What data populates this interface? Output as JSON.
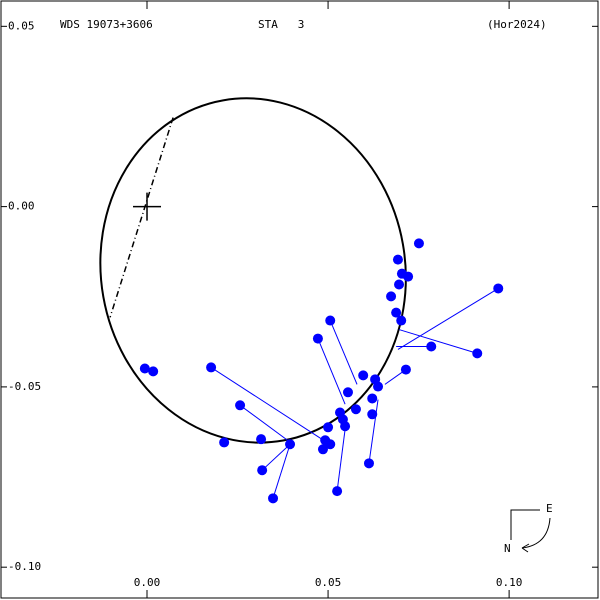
{
  "chart_data": {
    "type": "orbit",
    "title": "WDS 19073+3606",
    "subtitle": "STA   3",
    "reference": "(Hor2024)",
    "color": "#0000ff",
    "xlim": [
      -0.0406,
      0.1251
    ],
    "ylim": [
      -0.1091,
      0.0573
    ],
    "xticks": [
      {
        "value": 0,
        "label": "0.00"
      },
      {
        "value": 0.05,
        "label": "0.05"
      },
      {
        "value": 0.1,
        "label": "0.10"
      }
    ],
    "yticks": [
      {
        "value": 0.05,
        "label": "0.05"
      },
      {
        "value": 0,
        "label": "0.00"
      },
      {
        "value": -0.05,
        "label": "-0.05"
      },
      {
        "value": -0.1,
        "label": "-0.10"
      }
    ],
    "orbit": {
      "center_x": 0.0293,
      "center_y": -0.0177,
      "semi_x": 0.042,
      "semi_y": 0.0479,
      "angle": -10
    },
    "node_line": {
      "x": [
        0.0072,
        -0.0102
      ],
      "y": [
        0.0247,
        -0.0307
      ]
    },
    "primary": {
      "x": 0,
      "y": 0
    },
    "observations": {
      "x": [
        0.0751,
        0.0693,
        0.0721,
        0.0704,
        0.0696,
        0.0674,
        0.0688,
        0.0702,
        0.097,
        0.0785,
        0.0912,
        0.0506,
        0.0472,
        0.0715,
        0.0597,
        0.063,
        0.0638,
        0.0555,
        0.0622,
        0.0577,
        0.0533,
        0.0541,
        0.0622,
        0.0547,
        0.05,
        0.0492,
        0.0506,
        0.0486,
        0.0177,
        0.0257,
        0.0213,
        0.0315,
        0.0395,
        0.0318,
        0.0348,
        0.0525,
        0.0613,
        -0.0006,
        0.0017
      ],
      "y": [
        -0.0102,
        -0.0147,
        -0.0194,
        -0.0186,
        -0.0216,
        -0.0249,
        -0.0294,
        -0.0316,
        -0.0227,
        -0.0388,
        -0.0407,
        -0.0316,
        -0.0366,
        -0.0452,
        -0.0468,
        -0.0479,
        -0.0499,
        -0.0515,
        -0.0532,
        -0.0562,
        -0.0571,
        -0.059,
        -0.0576,
        -0.0609,
        -0.0612,
        -0.0648,
        -0.0659,
        -0.0673,
        -0.0446,
        -0.0551,
        -0.0654,
        -0.0645,
        -0.0659,
        -0.0731,
        -0.0809,
        -0.0789,
        -0.0712,
        -0.0449,
        -0.0457
      ],
      "fit_x": [
        null,
        null,
        null,
        null,
        null,
        null,
        null,
        null,
        0.0693,
        0.0688,
        0.0696,
        0.058,
        0.0547,
        0.0657,
        null,
        null,
        null,
        null,
        null,
        null,
        null,
        null,
        null,
        null,
        null,
        null,
        null,
        null,
        0.0483,
        0.0403,
        null,
        null,
        null,
        0.0395,
        0.0395,
        0.0547,
        0.0638,
        null,
        null
      ],
      "fit_y": [
        null,
        null,
        null,
        null,
        null,
        null,
        null,
        null,
        -0.0396,
        -0.0388,
        -0.0341,
        -0.0493,
        -0.0548,
        -0.0493,
        null,
        null,
        null,
        null,
        null,
        null,
        null,
        null,
        null,
        null,
        null,
        null,
        null,
        null,
        -0.0645,
        -0.0659,
        null,
        null,
        null,
        -0.0659,
        -0.0659,
        -0.0618,
        -0.0535,
        null,
        null
      ]
    },
    "compass": {
      "east": "E",
      "north": "N"
    }
  }
}
